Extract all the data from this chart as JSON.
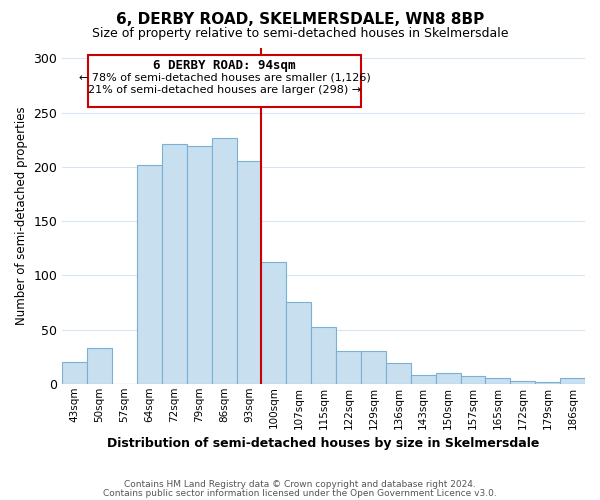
{
  "title": "6, DERBY ROAD, SKELMERSDALE, WN8 8BP",
  "subtitle": "Size of property relative to semi-detached houses in Skelmersdale",
  "xlabel": "Distribution of semi-detached houses by size in Skelmersdale",
  "ylabel": "Number of semi-detached properties",
  "bar_color": "#c8dff0",
  "bar_edge_color": "#7ab0d4",
  "bins": [
    "43sqm",
    "50sqm",
    "57sqm",
    "64sqm",
    "72sqm",
    "79sqm",
    "86sqm",
    "93sqm",
    "100sqm",
    "107sqm",
    "115sqm",
    "122sqm",
    "129sqm",
    "136sqm",
    "143sqm",
    "150sqm",
    "157sqm",
    "165sqm",
    "172sqm",
    "179sqm",
    "186sqm"
  ],
  "values": [
    20,
    33,
    0,
    202,
    221,
    219,
    227,
    205,
    112,
    75,
    52,
    30,
    30,
    19,
    8,
    10,
    7,
    5,
    3,
    2,
    5
  ],
  "ylim": [
    0,
    310
  ],
  "yticks": [
    0,
    50,
    100,
    150,
    200,
    250,
    300
  ],
  "marker_label": "6 DERBY ROAD: 94sqm",
  "annotation_line1": "← 78% of semi-detached houses are smaller (1,126)",
  "annotation_line2": "21% of semi-detached houses are larger (298) →",
  "vline_color": "#cc0000",
  "box_edge_color": "#cc0000",
  "footnote1": "Contains HM Land Registry data © Crown copyright and database right 2024.",
  "footnote2": "Contains public sector information licensed under the Open Government Licence v3.0.",
  "background_color": "#ffffff",
  "grid_color": "#d8e4f0"
}
